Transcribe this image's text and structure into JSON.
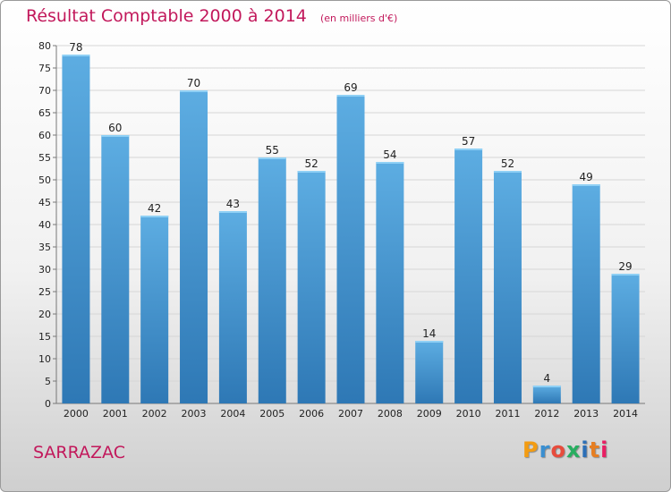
{
  "chart_data": {
    "type": "bar",
    "title": "Résultat Comptable 2000 à 2014",
    "subtitle": "(en milliers d'€)",
    "categories": [
      "2000",
      "2001",
      "2002",
      "2003",
      "2004",
      "2005",
      "2006",
      "2007",
      "2008",
      "2009",
      "2010",
      "2011",
      "2012",
      "2013",
      "2014"
    ],
    "values": [
      78,
      60,
      42,
      70,
      43,
      55,
      52,
      69,
      54,
      14,
      57,
      52,
      4,
      49,
      29
    ],
    "yticks": [
      0,
      5,
      10,
      15,
      20,
      25,
      30,
      35,
      40,
      45,
      50,
      55,
      60,
      65,
      70,
      75,
      80
    ],
    "ylim": [
      0,
      80
    ],
    "xlabel": "",
    "ylabel": "",
    "grid": "horizontal",
    "bar_color_top": "#5dade2",
    "bar_color_bottom": "#2e78b5"
  },
  "footer": {
    "commune": "SARRAZAC",
    "logo_letters": [
      "P",
      "r",
      "o",
      "x",
      "i",
      "t",
      "i"
    ],
    "logo_colors": [
      "#f39c12",
      "#3a8fd1",
      "#e74c3c",
      "#27ae60",
      "#2c6fb7",
      "#e67e22",
      "#e91e63"
    ]
  }
}
